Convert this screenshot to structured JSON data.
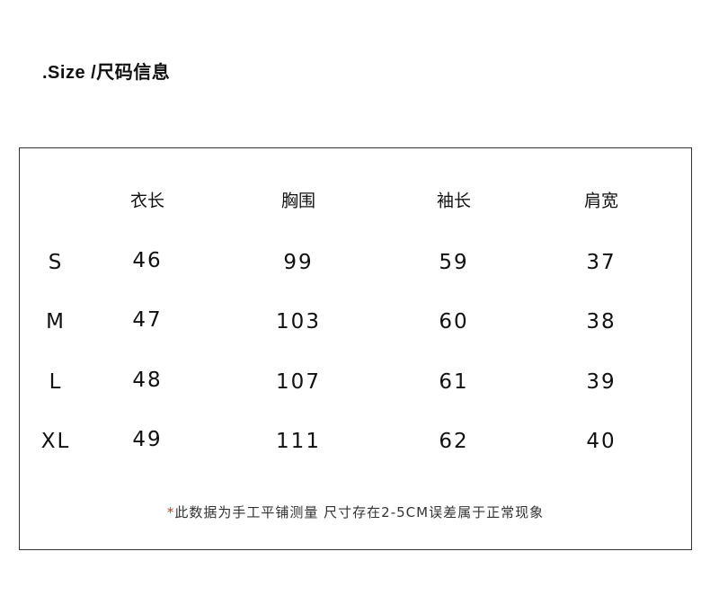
{
  "title": ".Size /尺码信息",
  "table": {
    "headers": [
      "",
      "衣长",
      "胸围",
      "袖长",
      "肩宽"
    ],
    "rows": [
      [
        "S",
        "46",
        "99",
        "59",
        "37"
      ],
      [
        "M",
        "47",
        "103",
        "60",
        "38"
      ],
      [
        "L",
        "48",
        "107",
        "61",
        "39"
      ],
      [
        "XL",
        "49",
        "111",
        "62",
        "40"
      ]
    ]
  },
  "note": {
    "marker": "*",
    "text": "此数据为手工平铺测量 尺寸存在2-5CM误差属于正常现象",
    "marker_color": "#d0302a"
  }
}
